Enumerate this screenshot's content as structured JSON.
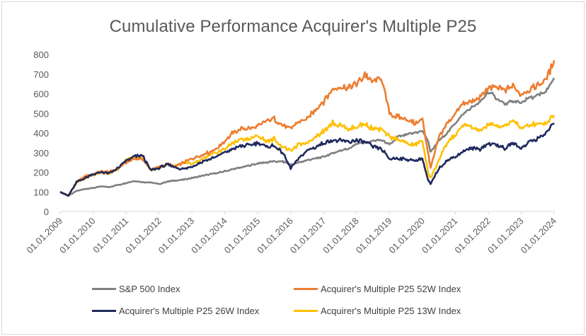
{
  "chart_data": {
    "type": "line",
    "title": "Cumulative Performance Acquirer's Multiple P25",
    "xlabel": "",
    "ylabel": "",
    "ylim": [
      0,
      800
    ],
    "yticks": [
      "0",
      "100",
      "200",
      "300",
      "400",
      "500",
      "600",
      "700",
      "800"
    ],
    "grid": false,
    "legend_position": "bottom",
    "x_labels": [
      "01.01.2009",
      "01.01.2010",
      "01.01.2011",
      "01.01.2012",
      "01.01.2013",
      "01.01.2014",
      "01.01.2015",
      "01.01.2016",
      "01.01.2017",
      "01.01.2018",
      "01.01.2019",
      "01.01.2020",
      "01.01.2021",
      "01.01.2022",
      "01.01.2023",
      "01.01.2024"
    ],
    "x_years": [
      2009.0,
      2009.25,
      2009.5,
      2009.75,
      2010.0,
      2010.25,
      2010.5,
      2010.75,
      2011.0,
      2011.25,
      2011.5,
      2011.75,
      2012.0,
      2012.25,
      2012.5,
      2012.75,
      2013.0,
      2013.25,
      2013.5,
      2013.75,
      2014.0,
      2014.25,
      2014.5,
      2014.75,
      2015.0,
      2015.25,
      2015.5,
      2015.75,
      2016.0,
      2016.25,
      2016.5,
      2016.75,
      2017.0,
      2017.25,
      2017.5,
      2017.75,
      2018.0,
      2018.25,
      2018.5,
      2018.75,
      2019.0,
      2019.25,
      2019.5,
      2019.75,
      2020.0,
      2020.17,
      2020.25,
      2020.5,
      2020.75,
      2021.0,
      2021.25,
      2021.5,
      2021.75,
      2022.0,
      2022.25,
      2022.5,
      2022.75,
      2023.0,
      2023.25,
      2023.5,
      2023.75,
      2024.0
    ],
    "series": [
      {
        "name": "S&P 500 Index",
        "color": "#808080",
        "values": [
          100,
          80,
          105,
          115,
          120,
          128,
          125,
          135,
          145,
          155,
          150,
          148,
          140,
          152,
          158,
          162,
          170,
          180,
          188,
          195,
          205,
          215,
          225,
          235,
          245,
          250,
          255,
          255,
          238,
          250,
          262,
          270,
          280,
          295,
          310,
          320,
          345,
          350,
          360,
          365,
          338,
          380,
          390,
          400,
          410,
          360,
          300,
          360,
          400,
          450,
          500,
          530,
          555,
          610,
          580,
          545,
          560,
          555,
          580,
          590,
          610,
          680
        ]
      },
      {
        "name": "Acquirer's Multiple P25 52W Index",
        "color": "#ED7D31",
        "values": [
          100,
          80,
          150,
          180,
          190,
          205,
          200,
          220,
          250,
          270,
          265,
          215,
          225,
          240,
          230,
          250,
          270,
          285,
          300,
          320,
          360,
          400,
          420,
          425,
          430,
          460,
          470,
          440,
          420,
          460,
          470,
          520,
          560,
          620,
          640,
          630,
          650,
          700,
          660,
          680,
          500,
          480,
          470,
          450,
          470,
          300,
          220,
          380,
          450,
          500,
          550,
          560,
          580,
          630,
          630,
          620,
          640,
          600,
          620,
          640,
          670,
          770
        ]
      },
      {
        "name": "Acquirer's Multiple P25 26W Index",
        "color": "#1F2A5E",
        "values": [
          100,
          80,
          150,
          170,
          190,
          200,
          195,
          220,
          260,
          280,
          285,
          210,
          220,
          240,
          225,
          215,
          230,
          250,
          265,
          280,
          300,
          320,
          335,
          340,
          350,
          330,
          335,
          300,
          220,
          270,
          310,
          330,
          350,
          365,
          360,
          355,
          360,
          355,
          330,
          320,
          270,
          270,
          265,
          260,
          270,
          160,
          140,
          220,
          260,
          280,
          310,
          320,
          320,
          345,
          340,
          320,
          350,
          320,
          360,
          370,
          400,
          450
        ]
      },
      {
        "name": "Acquirer's Multiple P25 13W Index",
        "color": "#FFC000",
        "values": [
          100,
          80,
          150,
          170,
          185,
          200,
          195,
          215,
          260,
          280,
          275,
          210,
          225,
          240,
          230,
          250,
          240,
          260,
          280,
          300,
          320,
          350,
          370,
          370,
          385,
          360,
          370,
          330,
          310,
          340,
          350,
          380,
          410,
          450,
          440,
          420,
          430,
          450,
          420,
          420,
          380,
          370,
          350,
          340,
          360,
          200,
          170,
          260,
          350,
          390,
          440,
          430,
          410,
          440,
          440,
          430,
          470,
          420,
          440,
          450,
          450,
          490
        ]
      }
    ]
  }
}
